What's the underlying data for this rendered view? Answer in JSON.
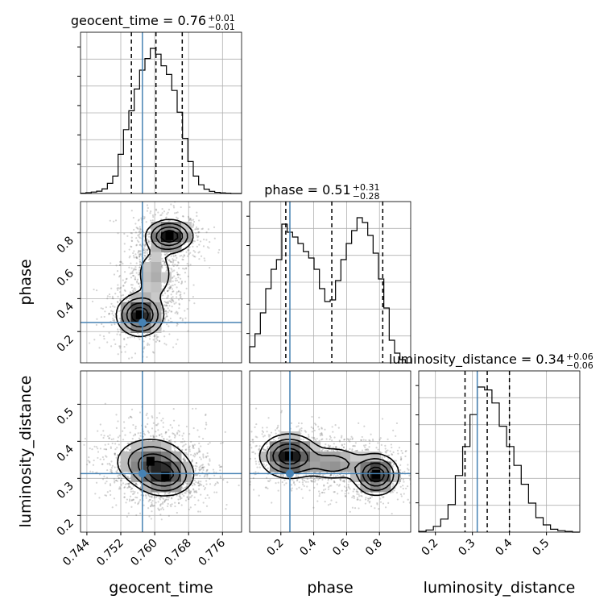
{
  "figure": {
    "params": [
      "geocent_time",
      "phase",
      "luminosity_distance"
    ],
    "titles": [
      {
        "name": "geocent_time",
        "value": "0.76",
        "plus": "+0.01",
        "minus": "−0.01"
      },
      {
        "name": "phase",
        "value": "0.51",
        "plus": "+0.31",
        "minus": "−0.28"
      },
      {
        "name": "luminosity_distance",
        "value": "0.34",
        "plus": "+0.06",
        "minus": "−0.06"
      }
    ],
    "xlabels": [
      "geocent_time",
      "phase",
      "luminosity_distance"
    ],
    "ylabels": [
      "phase",
      "luminosity_distance"
    ],
    "ticks": {
      "geocent_time": [
        "0.744",
        "0.752",
        "0.760",
        "0.768",
        "0.776"
      ],
      "phase": [
        "0.2",
        "0.4",
        "0.6",
        "0.8"
      ],
      "luminosity_distance": [
        "0.2",
        "0.3",
        "0.4",
        "0.5"
      ]
    },
    "colors": {
      "truth": "#4682b4",
      "hist": "#000000",
      "grid": "#b0b0b0"
    }
  },
  "chart_data": {
    "type": "corner",
    "grid": true,
    "truths": {
      "geocent_time": 0.7571,
      "phase": 0.255,
      "luminosity_distance": 0.313
    },
    "ranges": {
      "geocent_time": [
        0.7425,
        0.7805
      ],
      "phase": [
        0.01,
        0.99
      ],
      "luminosity_distance": [
        0.155,
        0.59
      ]
    },
    "quantiles": {
      "geocent_time": [
        0.7545,
        0.7603,
        0.7665
      ],
      "phase": [
        0.23,
        0.51,
        0.82
      ],
      "luminosity_distance": [
        0.28,
        0.34,
        0.4
      ]
    },
    "histograms": {
      "geocent_time": {
        "edges_range": [
          0.7425,
          0.7805
        ],
        "counts": [
          0.2,
          0.6,
          1,
          1.6,
          3.2,
          7,
          12,
          27,
          44,
          57,
          72,
          85,
          93,
          100,
          96,
          88,
          82,
          71,
          56,
          38,
          22,
          12,
          6,
          3,
          1.5,
          0.8,
          0.4,
          0.2,
          0,
          0
        ]
      },
      "phase": {
        "edges_range": [
          0.01,
          0.99
        ],
        "counts": [
          10,
          18,
          31,
          46,
          58,
          64,
          86,
          81,
          78,
          74,
          69,
          65,
          58,
          46,
          38,
          39,
          51,
          64,
          74,
          82,
          90,
          87,
          79,
          68,
          52,
          34,
          14,
          6,
          2,
          0
        ]
      },
      "luminosity_distance": {
        "edges_range": [
          0.155,
          0.59
        ],
        "counts": [
          0.5,
          1.5,
          4,
          9,
          19,
          39,
          59,
          81,
          100,
          98,
          89,
          73,
          59,
          46,
          33,
          20,
          10,
          5,
          2,
          1,
          0.5,
          0
        ]
      }
    },
    "modes": [
      {
        "pair": [
          "geocent_time",
          "phase"
        ],
        "centers": [
          [
            0.7565,
            0.3
          ],
          [
            0.7635,
            0.78
          ]
        ]
      },
      {
        "pair": [
          "geocent_time",
          "luminosity_distance"
        ],
        "centers": [
          [
            0.7605,
            0.32
          ]
        ]
      },
      {
        "pair": [
          "phase",
          "luminosity_distance"
        ],
        "centers": [
          [
            0.25,
            0.36
          ],
          [
            0.78,
            0.31
          ]
        ]
      }
    ]
  }
}
